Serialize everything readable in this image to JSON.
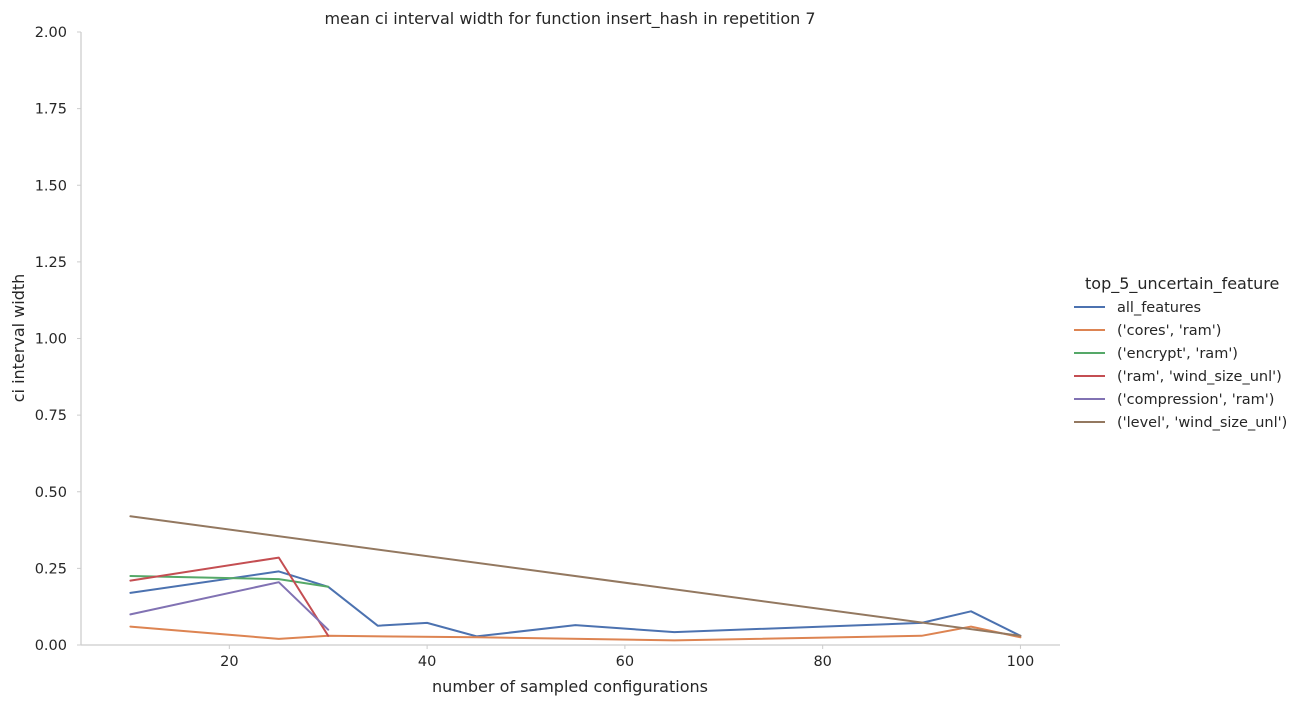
{
  "chart_data": {
    "type": "line",
    "title": "mean ci interval width for function insert_hash in repetition 7",
    "xlabel": "number of sampled configurations",
    "ylabel": "ci interval width",
    "xlim": [
      5,
      104
    ],
    "ylim": [
      0,
      2.0
    ],
    "xticks": [
      20,
      40,
      60,
      80,
      100
    ],
    "xtick_labels": [
      "20",
      "40",
      "60",
      "80",
      "100"
    ],
    "yticks": [
      0.0,
      0.25,
      0.5,
      0.75,
      1.0,
      1.25,
      1.5,
      1.75,
      2.0
    ],
    "ytick_labels": [
      "0.00",
      "0.25",
      "0.50",
      "0.75",
      "1.00",
      "1.25",
      "1.50",
      "1.75",
      "2.00"
    ],
    "grid": false,
    "legend": {
      "title": "top_5_uncertain_feature",
      "placement": "right"
    },
    "series": [
      {
        "name": "all_features",
        "color": "#4c72b0",
        "x": [
          10,
          25,
          30,
          35,
          40,
          45,
          55,
          65,
          90,
          95,
          100
        ],
        "y": [
          0.17,
          0.24,
          0.19,
          0.063,
          0.072,
          0.028,
          0.065,
          0.042,
          0.072,
          0.11,
          0.03
        ]
      },
      {
        "name": "('cores', 'ram')",
        "color": "#dd8452",
        "x": [
          10,
          25,
          30,
          45,
          65,
          90,
          95,
          100
        ],
        "y": [
          0.06,
          0.02,
          0.03,
          0.025,
          0.015,
          0.03,
          0.06,
          0.025
        ]
      },
      {
        "name": "('encrypt', 'ram')",
        "color": "#55a868",
        "x": [
          10,
          25,
          30
        ],
        "y": [
          0.225,
          0.215,
          0.19
        ]
      },
      {
        "name": "('ram', 'wind_size_unl')",
        "color": "#c44e52",
        "x": [
          10,
          25,
          30
        ],
        "y": [
          0.21,
          0.285,
          0.03
        ]
      },
      {
        "name": "('compression', 'ram')",
        "color": "#8172b3",
        "x": [
          10,
          25,
          30
        ],
        "y": [
          0.1,
          0.205,
          0.05
        ]
      },
      {
        "name": "('level', 'wind_size_unl')",
        "color": "#937860",
        "x": [
          10,
          100
        ],
        "y": [
          0.42,
          0.03
        ]
      }
    ]
  }
}
